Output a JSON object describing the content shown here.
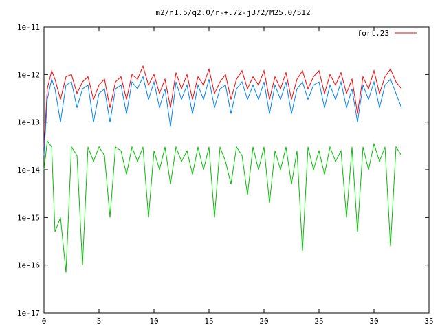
{
  "chart_data": {
    "type": "line",
    "title": "m2/n1.5/q2.0/r-+.72-j372/M25.0/512",
    "xlabel": "",
    "ylabel": "",
    "xlim": [
      0,
      35
    ],
    "ylim": [
      1e-17,
      1e-11
    ],
    "yscale": "log",
    "grid": false,
    "legend_position": "top-right",
    "x_ticks": [
      0,
      5,
      10,
      15,
      20,
      25,
      30,
      35
    ],
    "x_tick_labels": [
      "0",
      "5",
      "10",
      "15",
      "20",
      "25",
      "30",
      "35"
    ],
    "y_ticks": [
      1e-17,
      1e-16,
      1e-15,
      1e-14,
      1e-13,
      1e-12,
      1e-11
    ],
    "y_tick_labels": [
      "1e-17",
      "1e-16",
      "1e-15",
      "1e-14",
      "1e-13",
      "1e-12",
      "1e-11"
    ],
    "series": [
      {
        "name": "fort.23",
        "color": "#ff0000",
        "x": [
          0,
          0.3,
          0.7,
          1.0,
          1.5,
          2.0,
          2.5,
          3.0,
          3.5,
          4.0,
          4.5,
          5.0,
          5.5,
          6.0,
          6.5,
          7.0,
          7.5,
          8.0,
          8.5,
          9.0,
          9.5,
          10.0,
          10.5,
          11.0,
          11.5,
          12.0,
          12.5,
          13.0,
          13.5,
          14.0,
          14.5,
          15.0,
          15.5,
          16.0,
          16.5,
          17.0,
          17.5,
          18.0,
          18.5,
          19.0,
          19.5,
          20.0,
          20.5,
          21.0,
          21.5,
          22.0,
          22.5,
          23.0,
          23.5,
          24.0,
          24.5,
          25.0,
          25.5,
          26.0,
          26.5,
          27.0,
          27.5,
          28.0,
          28.5,
          29.0,
          29.5,
          30.0,
          30.5,
          31.0,
          31.5,
          32.0,
          32.5
        ],
        "y": [
          3e-14,
          5e-13,
          1.2e-12,
          8e-13,
          3e-13,
          9e-13,
          1e-12,
          4e-13,
          7e-13,
          9e-13,
          3e-13,
          6e-13,
          8e-13,
          2e-13,
          7e-13,
          9e-13,
          3e-13,
          1e-12,
          8e-13,
          1.5e-12,
          6e-13,
          1e-12,
          4e-13,
          8e-13,
          2e-13,
          1.1e-12,
          5e-13,
          1e-12,
          3e-13,
          9e-13,
          6e-13,
          1.3e-12,
          4e-13,
          7e-13,
          1e-12,
          3e-13,
          8e-13,
          1.2e-12,
          5e-13,
          9e-13,
          6e-13,
          1.2e-12,
          3e-13,
          9e-13,
          5e-13,
          1.1e-12,
          3e-13,
          8e-13,
          1.2e-12,
          5e-13,
          9e-13,
          1.2e-12,
          4e-13,
          1e-12,
          6e-13,
          1.1e-12,
          4e-13,
          8e-13,
          1.5e-13,
          9e-13,
          5e-13,
          1.2e-12,
          4e-13,
          9e-13,
          1.3e-12,
          7e-13,
          5e-13
        ]
      },
      {
        "color": "#0080ff",
        "x": [
          0,
          0.3,
          0.7,
          1.0,
          1.5,
          2.0,
          2.5,
          3.0,
          3.5,
          4.0,
          4.5,
          5.0,
          5.5,
          6.0,
          6.5,
          7.0,
          7.5,
          8.0,
          8.5,
          9.0,
          9.5,
          10.0,
          10.5,
          11.0,
          11.5,
          12.0,
          12.5,
          13.0,
          13.5,
          14.0,
          14.5,
          15.0,
          15.5,
          16.0,
          16.5,
          17.0,
          17.5,
          18.0,
          18.5,
          19.0,
          19.5,
          20.0,
          20.5,
          21.0,
          21.5,
          22.0,
          22.5,
          23.0,
          23.5,
          24.0,
          24.5,
          25.0,
          25.5,
          26.0,
          26.5,
          27.0,
          27.5,
          28.0,
          28.5,
          29.0,
          29.5,
          30.0,
          30.5,
          31.0,
          31.5,
          32.0,
          32.5
        ],
        "y": [
          2e-14,
          3e-13,
          8e-13,
          5e-13,
          1e-13,
          6e-13,
          7e-13,
          2e-13,
          5e-13,
          6e-13,
          1e-13,
          4e-13,
          5e-13,
          1e-13,
          5e-13,
          6e-13,
          1.5e-13,
          7e-13,
          5e-13,
          9e-13,
          3e-13,
          7e-13,
          2e-13,
          5e-13,
          8e-14,
          7e-13,
          3e-13,
          6e-13,
          1.5e-13,
          6e-13,
          3e-13,
          8e-13,
          2e-13,
          5e-13,
          6e-13,
          1.5e-13,
          5e-13,
          7e-13,
          3e-13,
          6e-13,
          3e-13,
          7e-13,
          1.5e-13,
          6e-13,
          3e-13,
          7e-13,
          1.5e-13,
          5e-13,
          7e-13,
          3e-13,
          6e-13,
          7e-13,
          2e-13,
          6e-13,
          3e-13,
          7e-13,
          2e-13,
          5e-13,
          1e-13,
          6e-13,
          3e-13,
          7e-13,
          2e-13,
          6e-13,
          8e-13,
          4e-13,
          2e-13
        ]
      },
      {
        "color": "#00c000",
        "x": [
          0,
          0.3,
          0.7,
          1.0,
          1.5,
          2.0,
          2.5,
          3.0,
          3.5,
          4.0,
          4.5,
          5.0,
          5.5,
          6.0,
          6.5,
          7.0,
          7.5,
          8.0,
          8.5,
          9.0,
          9.5,
          10.0,
          10.5,
          11.0,
          11.5,
          12.0,
          12.5,
          13.0,
          13.5,
          14.0,
          14.5,
          15.0,
          15.5,
          16.0,
          16.5,
          17.0,
          17.5,
          18.0,
          18.5,
          19.0,
          19.5,
          20.0,
          20.5,
          21.0,
          21.5,
          22.0,
          22.5,
          23.0,
          23.5,
          24.0,
          24.5,
          25.0,
          25.5,
          26.0,
          26.5,
          27.0,
          27.5,
          28.0,
          28.5,
          29.0,
          29.5,
          30.0,
          30.5,
          31.0,
          31.5,
          32.0,
          32.5
        ],
        "y": [
          1e-14,
          4e-14,
          3e-14,
          5e-16,
          1e-15,
          7e-17,
          3e-14,
          2e-14,
          1e-16,
          3e-14,
          1.5e-14,
          3e-14,
          2e-14,
          1e-15,
          3e-14,
          2.5e-14,
          8e-15,
          3e-14,
          1.5e-14,
          3e-14,
          1e-15,
          2.5e-14,
          1e-14,
          3e-14,
          5e-15,
          3e-14,
          1.5e-14,
          2.5e-14,
          8e-15,
          3e-14,
          1e-14,
          3e-14,
          1e-15,
          3e-14,
          1.5e-14,
          5e-15,
          3e-14,
          2e-14,
          3e-15,
          3e-14,
          1e-14,
          3e-14,
          2e-15,
          2.5e-14,
          1e-14,
          3e-14,
          5e-15,
          2.5e-14,
          2e-16,
          3e-14,
          1e-14,
          2.5e-14,
          8e-15,
          3e-14,
          1.5e-14,
          2.5e-14,
          1e-15,
          3e-14,
          5e-16,
          3e-14,
          1e-14,
          3.5e-14,
          1.5e-14,
          3e-14,
          2.5e-16,
          3e-14,
          2e-14
        ]
      }
    ]
  }
}
